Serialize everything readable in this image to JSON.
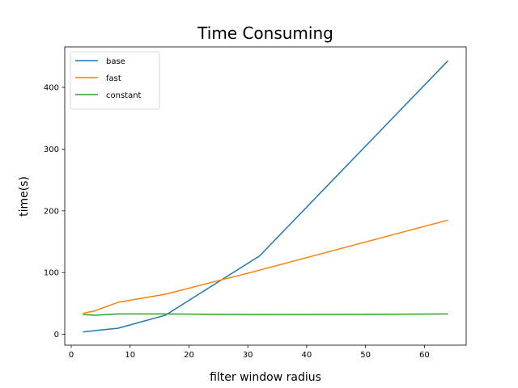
{
  "chart_data": {
    "type": "line",
    "title": "Time Consuming",
    "xlabel": "filter window radius",
    "ylabel": "time(s)",
    "xlim": [
      -1.1,
      67.1
    ],
    "ylim": [
      -17.5,
      465.5
    ],
    "xticks": [
      0,
      10,
      20,
      30,
      40,
      50,
      60
    ],
    "yticks": [
      0,
      100,
      200,
      300,
      400
    ],
    "grid": false,
    "legend_position": "top-left",
    "x": [
      2,
      4,
      8,
      16,
      32,
      64
    ],
    "series": [
      {
        "name": "base",
        "color": "#1f77b4",
        "values": [
          4,
          6,
          10,
          31,
          127,
          443
        ]
      },
      {
        "name": "fast",
        "color": "#ff7f0e",
        "values": [
          34,
          38,
          52,
          65,
          104,
          185
        ]
      },
      {
        "name": "constant",
        "color": "#2ca02c",
        "values": [
          32,
          31,
          33,
          33,
          32,
          33
        ]
      }
    ]
  }
}
